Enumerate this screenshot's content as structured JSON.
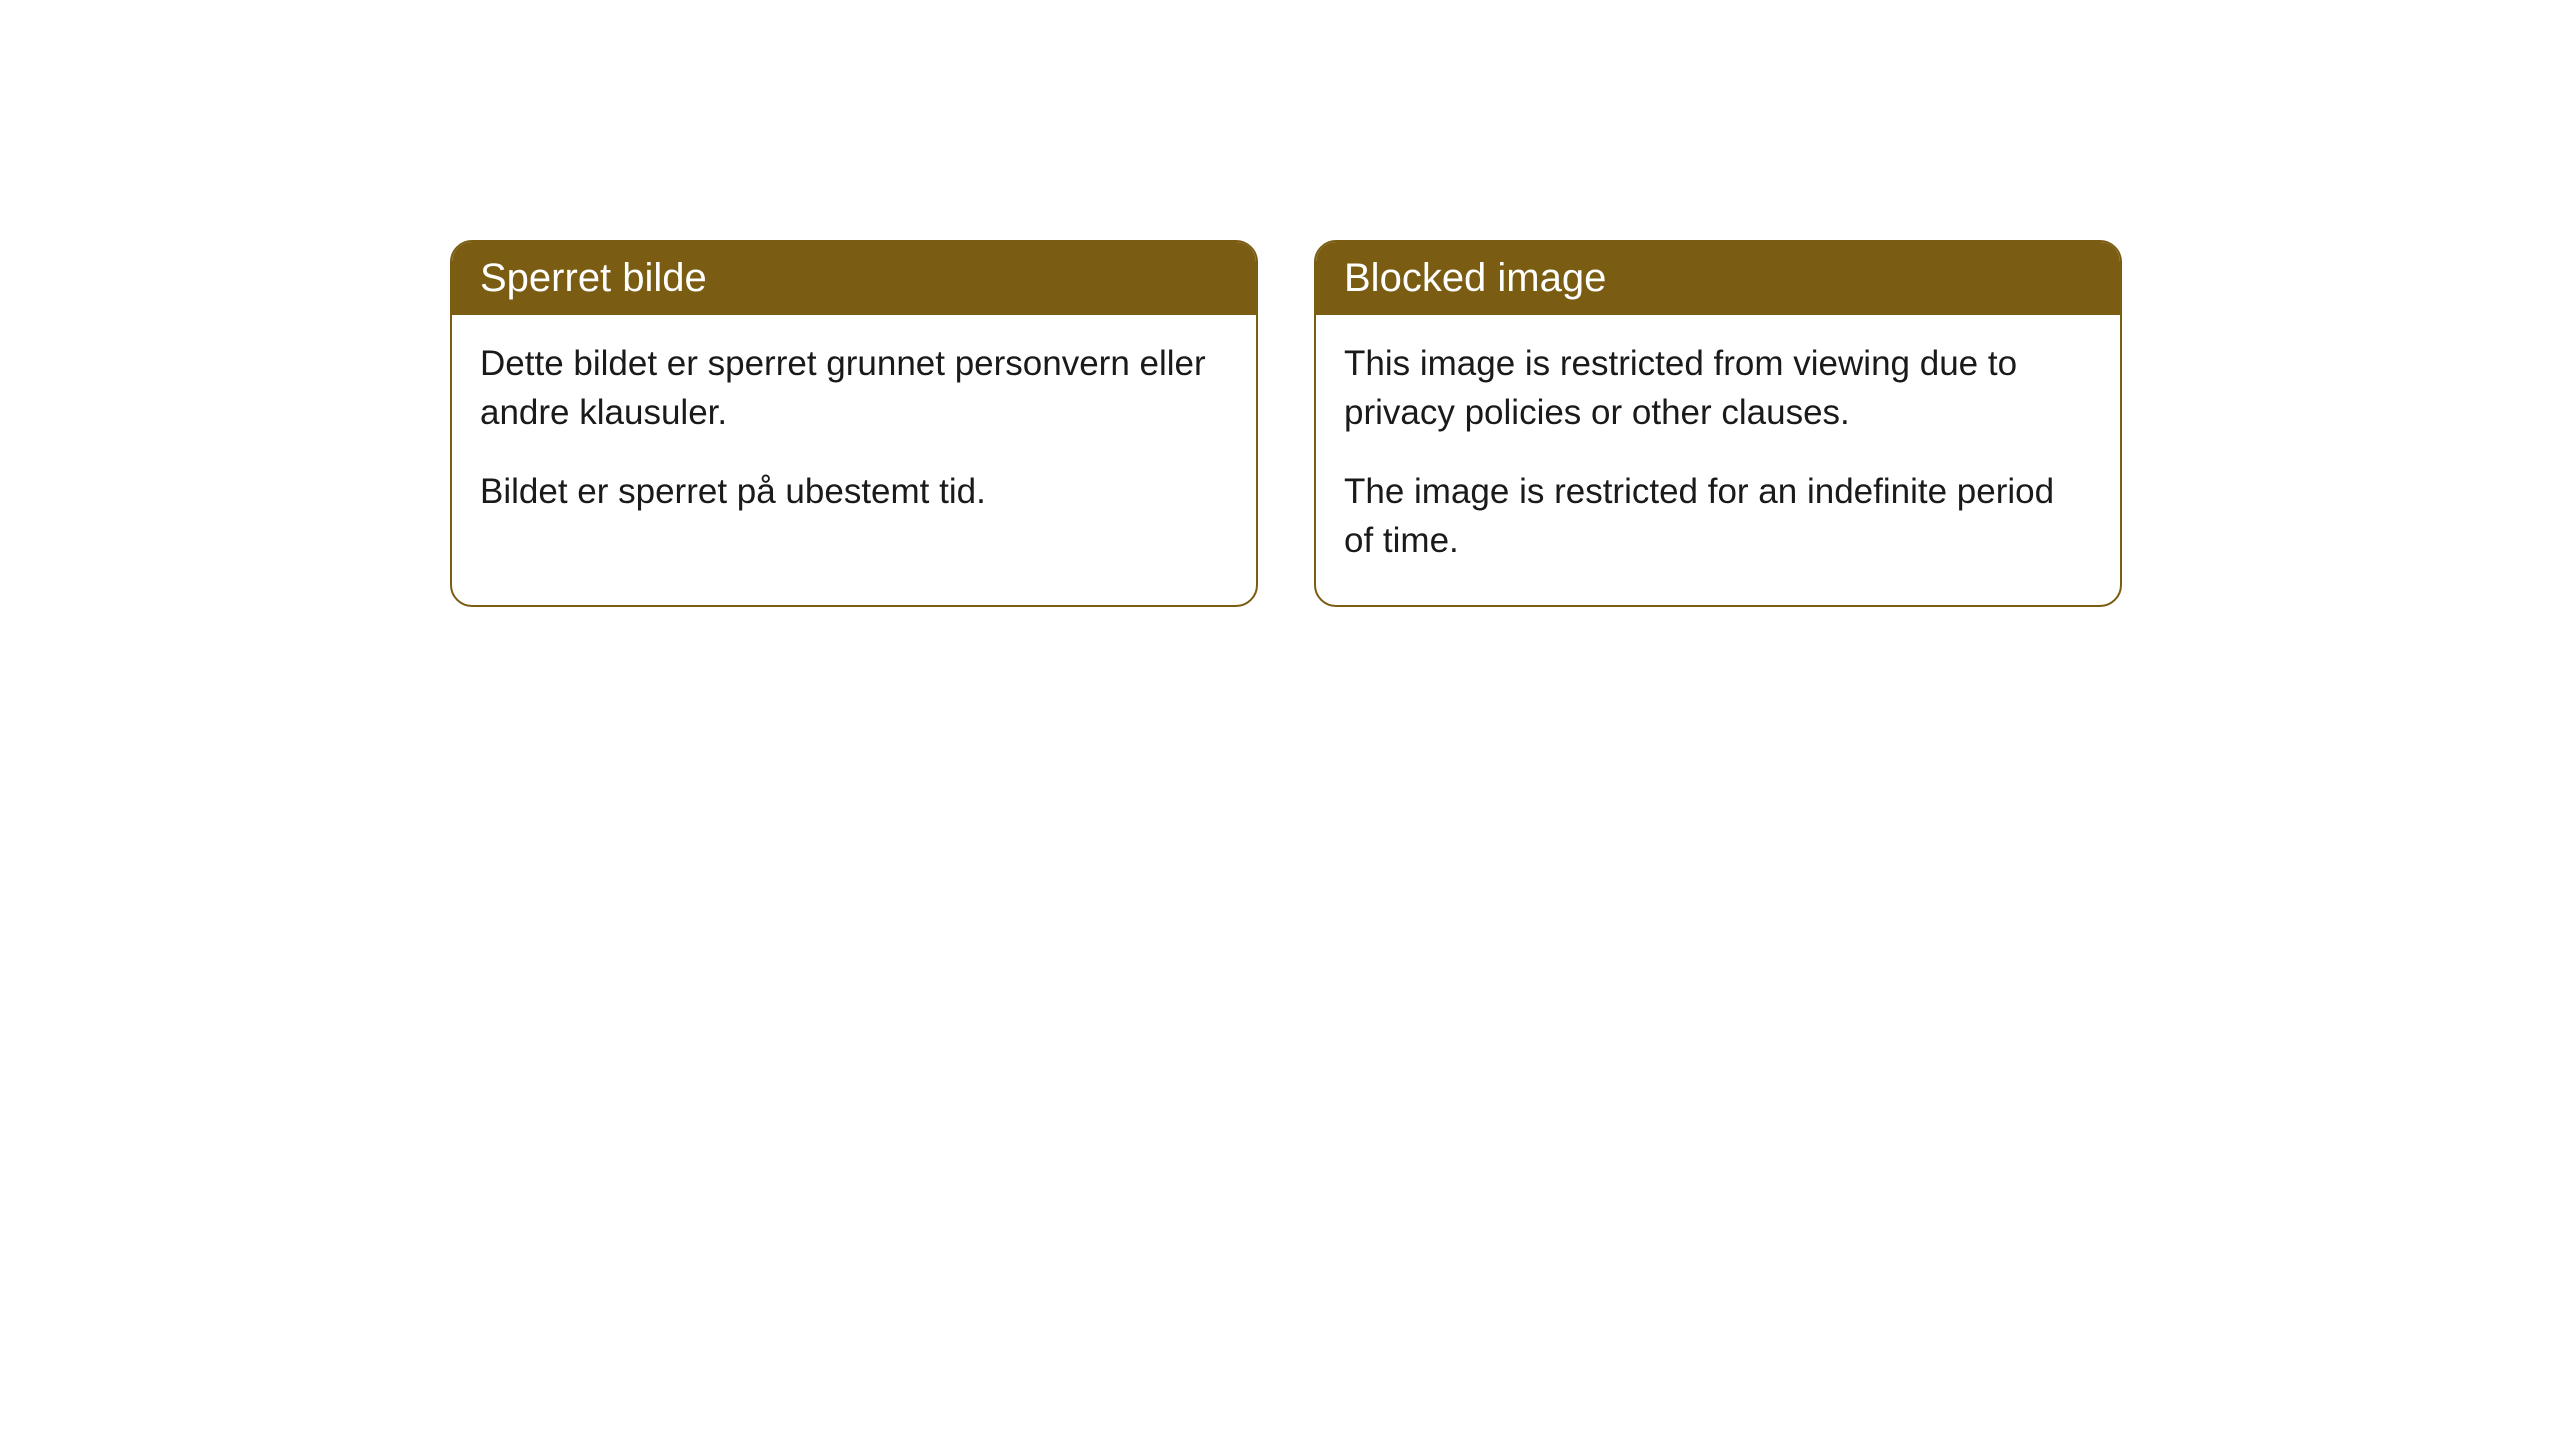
{
  "cards": [
    {
      "title": "Sperret bilde",
      "paragraph1": "Dette bildet er sperret grunnet personvern eller andre klausuler.",
      "paragraph2": "Bildet er sperret på ubestemt tid."
    },
    {
      "title": "Blocked image",
      "paragraph1": "This image is restricted from viewing due to privacy policies or other clauses.",
      "paragraph2": "The image is restricted for an indefinite period of time."
    }
  ],
  "styling": {
    "header_background_color": "#7a5c13",
    "header_text_color": "#ffffff",
    "border_color": "#7a5c13",
    "body_text_color": "#1a1a1a",
    "card_background_color": "#ffffff",
    "page_background_color": "#ffffff",
    "border_radius": 22,
    "title_fontsize": 40,
    "body_fontsize": 35
  }
}
